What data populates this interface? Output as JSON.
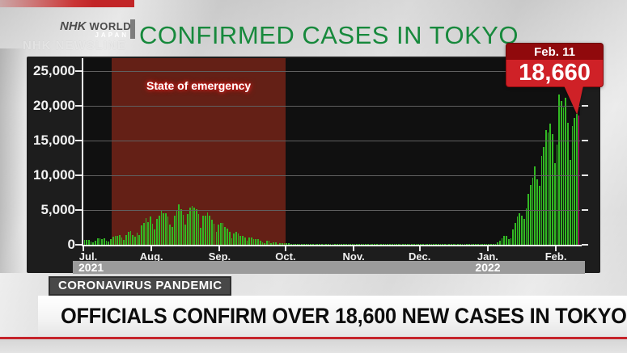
{
  "brand": {
    "nhk": "NHK",
    "world": "WORLD",
    "japan": "JAPAN",
    "newsline": "NHK NEWSLINE"
  },
  "title": "CONFIRMED CASES IN TOKYO",
  "callout": {
    "date": "Feb. 11",
    "value": "18,660"
  },
  "footer": {
    "badge": "CORONAVIRUS PANDEMIC",
    "headline": "OFFICIALS CONFIRM OVER 18,600 NEW CASES IN TOKYO"
  },
  "colors": {
    "title_green": "#17893c",
    "bar_green": "#32b923",
    "highlight_magenta": "#ee1493",
    "callout_red": "#cf2127",
    "callout_dark_red": "#90090c",
    "emergency_overlay": "rgba(170,46,28,0.55)",
    "headline_red_line": "#c5242b"
  },
  "chart_data": {
    "type": "bar",
    "title": "CONFIRMED CASES IN TOKYO",
    "ylabel": "",
    "xlabel": "",
    "ylim": [
      0,
      25000
    ],
    "start_date": "2021-07-01",
    "end_date": "2022-02-11",
    "y_ticks": [
      {
        "value": 25000,
        "label": "25,000"
      },
      {
        "value": 20000,
        "label": "20,000"
      },
      {
        "value": 15000,
        "label": "15,000"
      },
      {
        "value": 10000,
        "label": "10,000"
      },
      {
        "value": 5000,
        "label": "5,000"
      },
      {
        "value": 0,
        "label": "0"
      }
    ],
    "x_tick_labels": [
      "Jul.",
      "Aug.",
      "Sep.",
      "Oct.",
      "Nov.",
      "Dec.",
      "Jan.",
      "Feb."
    ],
    "month_start_indices": [
      0,
      31,
      62,
      92,
      123,
      153,
      184,
      215
    ],
    "year_labels": [
      "2021",
      "2022"
    ],
    "annotation": {
      "label": "State of emergency",
      "start_index": 13,
      "end_index": 92
    },
    "highlight_last": {
      "date": "Feb. 11",
      "value": 18660
    },
    "values": [
      673,
      660,
      716,
      518,
      342,
      593,
      920,
      896,
      822,
      950,
      614,
      502,
      830,
      1149,
      1308,
      1271,
      1410,
      1008,
      727,
      1387,
      1832,
      1979,
      1359,
      1128,
      1763,
      1429,
      2848,
      3177,
      3865,
      3300,
      4058,
      3058,
      2195,
      3709,
      4166,
      5042,
      4515,
      4566,
      4066,
      2884,
      2612,
      4200,
      4989,
      5773,
      5094,
      4295,
      2962,
      4377,
      5386,
      5534,
      5405,
      5074,
      4392,
      2447,
      4220,
      4228,
      4704,
      4227,
      3581,
      3081,
      1915,
      2909,
      3168,
      3099,
      2539,
      2362,
      1853,
      968,
      1629,
      1834,
      1675,
      1242,
      1273,
      1067,
      611,
      1004,
      1052,
      831,
      782,
      862,
      565,
      302,
      253,
      537,
      531,
      235,
      382,
      299,
      154,
      248,
      267,
      218,
      200,
      196,
      161,
      87,
      144,
      149,
      143,
      138,
      82,
      60,
      49,
      77,
      72,
      62,
      57,
      66,
      40,
      29,
      36,
      41,
      36,
      26,
      32,
      19,
      17,
      29,
      36,
      21,
      24,
      23,
      22,
      9,
      18,
      25,
      14,
      24,
      21,
      20,
      18,
      30,
      25,
      31,
      24,
      22,
      7,
      6,
      15,
      23,
      20,
      19,
      16,
      9,
      6,
      17,
      5,
      27,
      19,
      12,
      8,
      7,
      21,
      21,
      26,
      19,
      22,
      17,
      8,
      12,
      26,
      24,
      23,
      20,
      18,
      12,
      21,
      29,
      27,
      23,
      33,
      27,
      16,
      38,
      40,
      37,
      39,
      38,
      33,
      27,
      46,
      76,
      64,
      78,
      79,
      84,
      103,
      151,
      390,
      641,
      922,
      1224,
      1223,
      871,
      962,
      2198,
      3124,
      4051,
      4561,
      4172,
      3719,
      5185,
      7377,
      8638,
      9699,
      11227,
      9468,
      8503,
      12813,
      14086,
      16538,
      16178,
      17433,
      15895,
      11751,
      14445,
      21576,
      20679,
      19798,
      21122,
      17526,
      12211,
      17113,
      18287,
      18891,
      18660
    ]
  }
}
